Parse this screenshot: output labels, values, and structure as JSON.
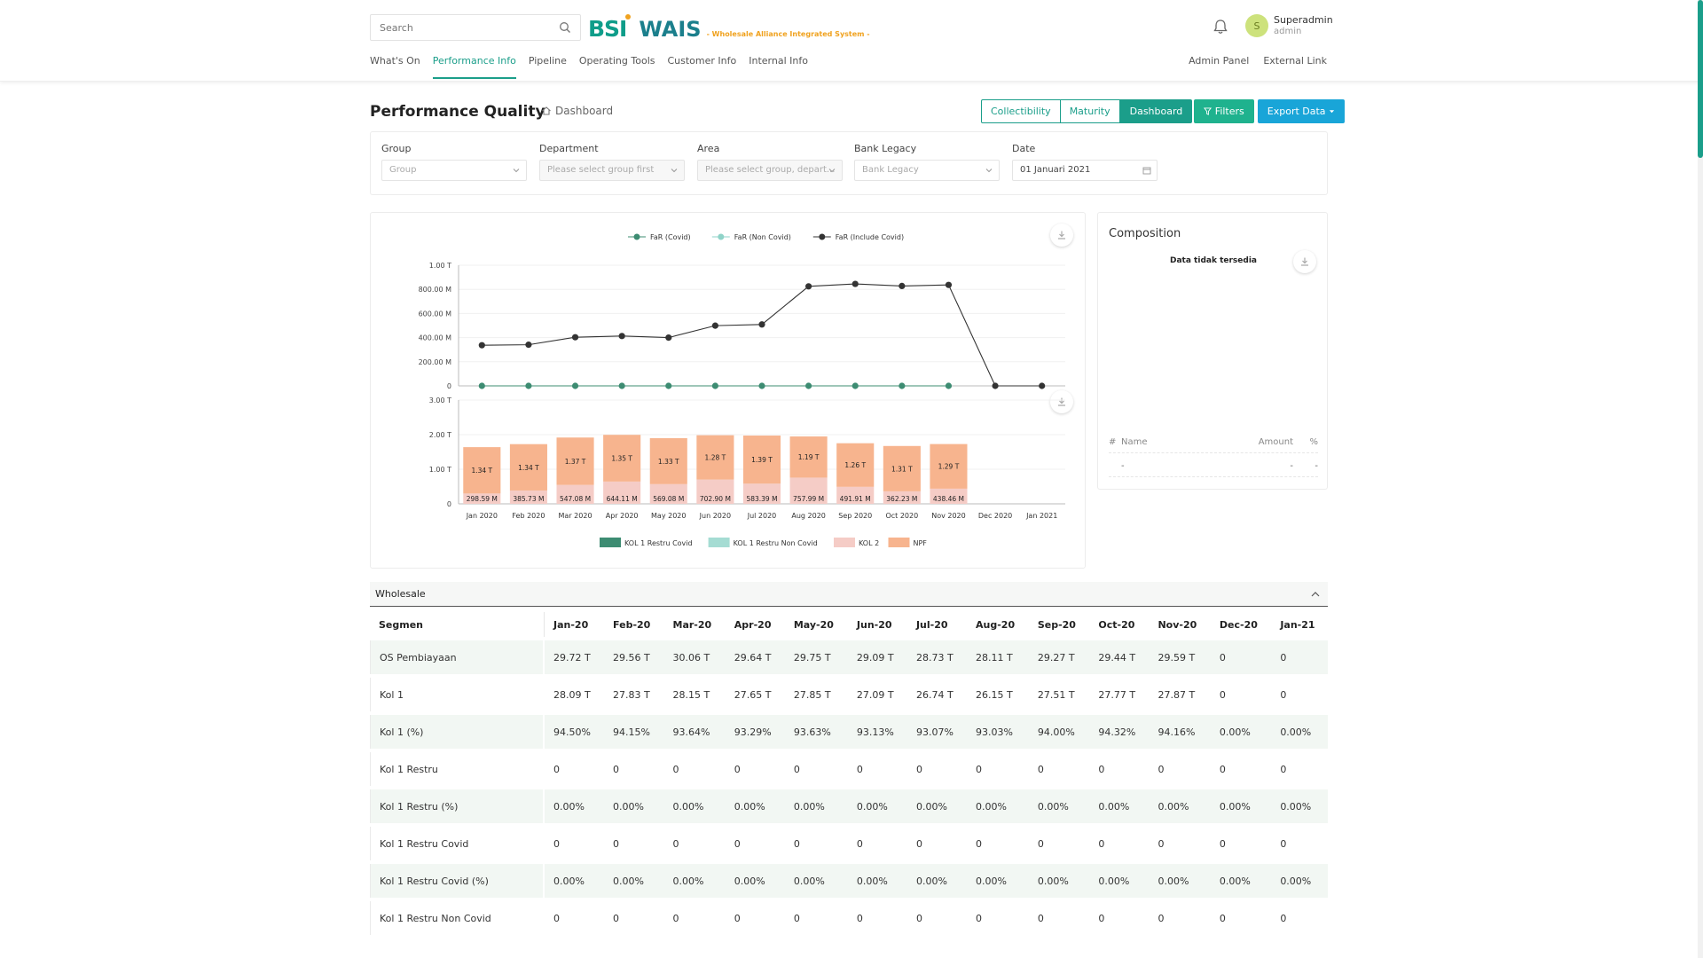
{
  "header": {
    "search_placeholder": "Search",
    "logo_bsi": "BSI",
    "logo_wais": "WAIS",
    "logo_tagline": "- Wholesale Alliance Integrated System -",
    "user_initial": "S",
    "user_name": "Superadmin",
    "user_role": "admin",
    "nav": [
      "What's On",
      "Performance Info",
      "Pipeline",
      "Operating Tools",
      "Customer Info",
      "Internal Info"
    ],
    "nav_active": "Performance Info",
    "nav_right": [
      "Admin Panel",
      "External Link"
    ]
  },
  "page": {
    "title": "Performance Quality",
    "breadcrumb": "Dashboard",
    "buttons": {
      "collectibility": "Collectibility",
      "maturity": "Maturity",
      "dashboard": "Dashboard",
      "filters": "Filters",
      "export": "Export Data"
    }
  },
  "filters": {
    "group": {
      "label": "Group",
      "placeholder": "Group"
    },
    "department": {
      "label": "Department",
      "placeholder": "Please select group first"
    },
    "area": {
      "label": "Area",
      "placeholder": "Please select group, depart..."
    },
    "bank_legacy": {
      "label": "Bank Legacy",
      "placeholder": "Bank Legacy"
    },
    "date": {
      "label": "Date",
      "value": "01 Januari 2021"
    }
  },
  "chart_data": [
    {
      "type": "line",
      "categories": [
        "Jan 2020",
        "Feb 2020",
        "Mar 2020",
        "Apr 2020",
        "May 2020",
        "Jun 2020",
        "Jul 2020",
        "Aug 2020",
        "Sep 2020",
        "Oct 2020",
        "Nov 2020",
        "Dec 2020",
        "Jan 2021"
      ],
      "legend": [
        "FaR (Covid)",
        "FaR (Non Covid)",
        "FaR (Include Covid)"
      ],
      "legend_position": "top",
      "y_ticks": [
        "0",
        "200.00 M",
        "400.00 M",
        "600.00 M",
        "800.00 M",
        "1.00 T"
      ],
      "ylim": [
        0,
        1000
      ],
      "y_unit": "M",
      "series": [
        {
          "name": "FaR (Covid)",
          "color": "#3d8c72",
          "values": [
            0,
            0,
            0,
            0,
            0,
            0,
            0,
            0,
            0,
            0,
            0,
            null,
            null
          ]
        },
        {
          "name": "FaR (Non Covid)",
          "color": "#8fd3c8",
          "values": [
            null,
            null,
            null,
            null,
            null,
            null,
            null,
            null,
            null,
            null,
            null,
            null,
            null
          ]
        },
        {
          "name": "FaR (Include Covid)",
          "color": "#333333",
          "values": [
            337,
            341,
            403,
            413,
            400,
            499,
            509,
            825,
            845,
            828,
            837,
            0,
            0
          ]
        }
      ]
    },
    {
      "type": "bar",
      "stacked": true,
      "categories": [
        "Jan 2020",
        "Feb 2020",
        "Mar 2020",
        "Apr 2020",
        "May 2020",
        "Jun 2020",
        "Jul 2020",
        "Aug 2020",
        "Sep 2020",
        "Oct 2020",
        "Nov 2020",
        "Dec 2020",
        "Jan 2021"
      ],
      "y_ticks": [
        "0",
        "1.00 T",
        "2.00 T",
        "3.00 T"
      ],
      "ylim": [
        0,
        3
      ],
      "y_unit": "T",
      "legend": [
        "KOL 1 Restru Covid",
        "KOL 1 Restru Non Covid",
        "KOL 2",
        "NPF"
      ],
      "legend_position": "bottom",
      "legend_colors": [
        "#3d8c72",
        "#a5dcd3",
        "#f5ccc6",
        "#f7b48e"
      ],
      "series": [
        {
          "name": "KOL 2",
          "color": "#f5ccc6",
          "values": [
            0.29859,
            0.38573,
            0.54708,
            0.64411,
            0.56908,
            0.7029,
            0.58339,
            0.75799,
            0.49191,
            0.36223,
            0.43846,
            0,
            0
          ],
          "labels": [
            "298.59 M",
            "385.73 M",
            "547.08 M",
            "644.11 M",
            "569.08 M",
            "702.90 M",
            "583.39 M",
            "757.99 M",
            "491.91 M",
            "362.23 M",
            "438.46 M",
            "",
            ""
          ]
        },
        {
          "name": "NPF",
          "color": "#f7b48e",
          "values": [
            1.34,
            1.34,
            1.37,
            1.35,
            1.33,
            1.28,
            1.39,
            1.19,
            1.26,
            1.31,
            1.29,
            0,
            0
          ],
          "labels": [
            "1.34 T",
            "1.34 T",
            "1.37 T",
            "1.35 T",
            "1.33 T",
            "1.28 T",
            "1.39 T",
            "1.19 T",
            "1.26 T",
            "1.31 T",
            "1.29 T",
            "",
            ""
          ]
        }
      ]
    }
  ],
  "composition": {
    "title": "Composition",
    "empty_text": "Data tidak tersedia",
    "columns": [
      "#",
      "Name",
      "Amount",
      "%"
    ],
    "row": [
      "-",
      "-",
      "-"
    ]
  },
  "table": {
    "section_title": "Wholesale",
    "columns": [
      "Segmen",
      "Jan-20",
      "Feb-20",
      "Mar-20",
      "Apr-20",
      "May-20",
      "Jun-20",
      "Jul-20",
      "Aug-20",
      "Sep-20",
      "Oct-20",
      "Nov-20",
      "Dec-20",
      "Jan-21"
    ],
    "rows": [
      [
        "OS Pembiayaan",
        "29.72 T",
        "29.56 T",
        "30.06 T",
        "29.64 T",
        "29.75 T",
        "29.09 T",
        "28.73 T",
        "28.11 T",
        "29.27 T",
        "29.44 T",
        "29.59 T",
        "0",
        "0"
      ],
      [
        "Kol 1",
        "28.09 T",
        "27.83 T",
        "28.15 T",
        "27.65 T",
        "27.85 T",
        "27.09 T",
        "26.74 T",
        "26.15 T",
        "27.51 T",
        "27.77 T",
        "27.87 T",
        "0",
        "0"
      ],
      [
        "Kol 1 (%)",
        "94.50%",
        "94.15%",
        "93.64%",
        "93.29%",
        "93.63%",
        "93.13%",
        "93.07%",
        "93.03%",
        "94.00%",
        "94.32%",
        "94.16%",
        "0.00%",
        "0.00%"
      ],
      [
        "Kol 1 Restru",
        "0",
        "0",
        "0",
        "0",
        "0",
        "0",
        "0",
        "0",
        "0",
        "0",
        "0",
        "0",
        "0"
      ],
      [
        "Kol 1 Restru (%)",
        "0.00%",
        "0.00%",
        "0.00%",
        "0.00%",
        "0.00%",
        "0.00%",
        "0.00%",
        "0.00%",
        "0.00%",
        "0.00%",
        "0.00%",
        "0.00%",
        "0.00%"
      ],
      [
        "Kol 1 Restru Covid",
        "0",
        "0",
        "0",
        "0",
        "0",
        "0",
        "0",
        "0",
        "0",
        "0",
        "0",
        "0",
        "0"
      ],
      [
        "Kol 1 Restru Covid (%)",
        "0.00%",
        "0.00%",
        "0.00%",
        "0.00%",
        "0.00%",
        "0.00%",
        "0.00%",
        "0.00%",
        "0.00%",
        "0.00%",
        "0.00%",
        "0.00%",
        "0.00%"
      ],
      [
        "Kol 1 Restru Non Covid",
        "0",
        "0",
        "0",
        "0",
        "0",
        "0",
        "0",
        "0",
        "0",
        "0",
        "0",
        "0",
        "0"
      ]
    ]
  }
}
